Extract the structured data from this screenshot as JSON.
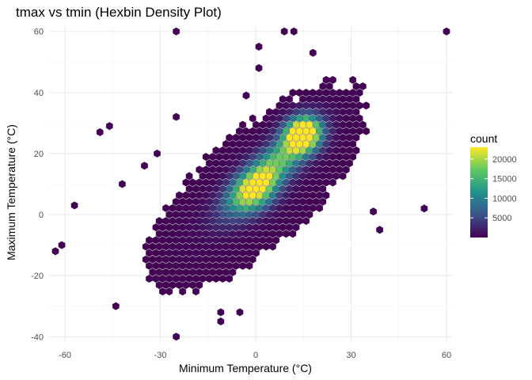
{
  "chart_data": {
    "type": "heatmap",
    "subtype": "hexbin",
    "title": "tmax vs tmin (Hexbin Density Plot)",
    "xlabel": "Minimum Temperature (°C)",
    "ylabel": "Maximum Temperature (°C)",
    "xlim": [
      -65,
      62
    ],
    "ylim": [
      -42,
      62
    ],
    "x_ticks": [
      -60,
      -30,
      0,
      30,
      60
    ],
    "y_ticks": [
      -40,
      -20,
      0,
      20,
      40,
      60
    ],
    "grid": true,
    "legend": {
      "title": "count",
      "position": "right",
      "ticks": [
        5000,
        10000,
        15000,
        20000
      ],
      "range": [
        1,
        23000
      ]
    },
    "colormap": "viridis",
    "colors": [
      "#440154",
      "#3b528b",
      "#21918c",
      "#5ec962",
      "#fde725"
    ],
    "bin_size": {
      "x": 2.1,
      "y": 2.1
    },
    "outliers": [
      [
        -25,
        60
      ],
      [
        9,
        60
      ],
      [
        12,
        60
      ],
      [
        60,
        60
      ],
      [
        1,
        55
      ],
      [
        18,
        53
      ],
      [
        1,
        48
      ],
      [
        -3,
        39
      ],
      [
        -25,
        32
      ],
      [
        -46,
        29
      ],
      [
        -49,
        27
      ],
      [
        -31,
        20
      ],
      [
        -35,
        16
      ],
      [
        -42,
        10
      ],
      [
        -57,
        3
      ],
      [
        53,
        2
      ],
      [
        39,
        -5
      ],
      [
        -61,
        -10
      ],
      [
        -63,
        -12
      ],
      [
        -44,
        -30
      ],
      [
        -25,
        -40
      ],
      [
        -11,
        -32
      ],
      [
        -5,
        -32
      ],
      [
        -11,
        -35
      ],
      [
        37,
        1
      ]
    ],
    "density_core": {
      "description": "count peaks near tmin≈15, tmax≈27 and along the diagonal tmax≈tmin+10"
    }
  }
}
